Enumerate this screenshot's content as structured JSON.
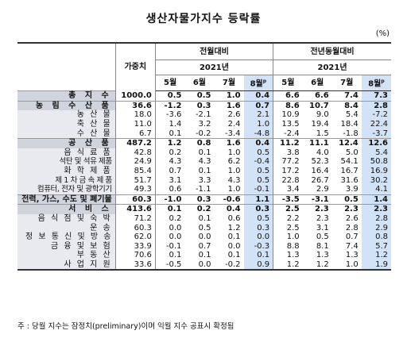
{
  "title": "생산자물가지수 등락률",
  "unit": "(%)",
  "headers": {
    "weight": "가중치",
    "mom": "전월대비",
    "yoy": "전년동월대비",
    "year": "2021년",
    "months": [
      "5월",
      "6월",
      "7월",
      "8월"
    ],
    "prelim_mark": "p"
  },
  "rows": [
    {
      "name": "총 지 수",
      "type": "major",
      "weight": "1000.0",
      "mom": [
        "0.5",
        "0.5",
        "1.0",
        "0.4"
      ],
      "yoy": [
        "6.6",
        "6.6",
        "7.4",
        "7.3"
      ]
    },
    {
      "name": "농 림 수 산 품",
      "type": "major",
      "weight": "36.6",
      "mom": [
        "-1.2",
        "0.3",
        "1.6",
        "0.7"
      ],
      "yoy": [
        "8.6",
        "10.7",
        "8.4",
        "2.8"
      ]
    },
    {
      "name": "농 산 물",
      "type": "sub",
      "weight": "18.0",
      "mom": [
        "-3.6",
        "-2.1",
        "2.6",
        "2.1"
      ],
      "yoy": [
        "10.9",
        "9.0",
        "5.4",
        "-7.2"
      ]
    },
    {
      "name": "축 산 물",
      "type": "sub",
      "weight": "11.0",
      "mom": [
        "1.4",
        "3.2",
        "2.4",
        "1.0"
      ],
      "yoy": [
        "13.5",
        "19.4",
        "18.4",
        "22.4"
      ]
    },
    {
      "name": "수 산 물",
      "type": "sub",
      "weight": "6.7",
      "mom": [
        "0.1",
        "-0.2",
        "-3.4",
        "-4.8"
      ],
      "yoy": [
        "-2.4",
        "1.5",
        "-1.8",
        "-3.7"
      ]
    },
    {
      "name": "공 산 품",
      "type": "major",
      "weight": "487.2",
      "mom": [
        "1.2",
        "0.8",
        "1.6",
        "0.4"
      ],
      "yoy": [
        "11.2",
        "11.1",
        "12.4",
        "12.6"
      ]
    },
    {
      "name": "음 식 료 품",
      "type": "sub",
      "weight": "42.8",
      "mom": [
        "0.2",
        "0.1",
        "1.0",
        "0.5"
      ],
      "yoy": [
        "3.8",
        "4.0",
        "5.0",
        "5.4"
      ]
    },
    {
      "name": "석탄 및 석유 제품",
      "type": "sub compact",
      "weight": "24.9",
      "mom": [
        "4.3",
        "4.3",
        "6.2",
        "-0.4"
      ],
      "yoy": [
        "77.2",
        "52.3",
        "54.1",
        "50.8"
      ]
    },
    {
      "name": "화 학 제 품",
      "type": "sub",
      "weight": "85.4",
      "mom": [
        "0.7",
        "0.1",
        "1.0",
        "0.5"
      ],
      "yoy": [
        "17.2",
        "16.4",
        "16.7",
        "16.9"
      ]
    },
    {
      "name": "제 1 차 금 속 제 품",
      "type": "sub compact",
      "weight": "51.7",
      "mom": [
        "3.1",
        "3.3",
        "4.3",
        "0.5"
      ],
      "yoy": [
        "22.8",
        "26.7",
        "31.6",
        "30.2"
      ]
    },
    {
      "name": "컴퓨터, 전자 및 광학기기",
      "type": "sub compact",
      "weight": "49.3",
      "mom": [
        "0.6",
        "-1.1",
        "1.0",
        "-0.1"
      ],
      "yoy": [
        "3.4",
        "2.9",
        "3.9",
        "4.1"
      ]
    },
    {
      "name": "전력, 가스, 수도 및 폐기물",
      "type": "major tight",
      "weight": "60.3",
      "mom": [
        "-1.0",
        "0.3",
        "-0.6",
        "1.1"
      ],
      "yoy": [
        "-3.5",
        "-3.1",
        "0.5",
        "1.4"
      ]
    },
    {
      "name": "서 비 스",
      "type": "major",
      "weight": "413.6",
      "mom": [
        "0.1",
        "0.2",
        "0.4",
        "0.3"
      ],
      "yoy": [
        "2.5",
        "2.3",
        "2.3",
        "2.3"
      ]
    },
    {
      "name": "음 식 점 및 숙 박",
      "type": "sub",
      "weight": "71.2",
      "mom": [
        "0.2",
        "0.1",
        "0.6",
        "0.5"
      ],
      "yoy": [
        "2.2",
        "2.3",
        "2.6",
        "2.8"
      ]
    },
    {
      "name": "운 송",
      "type": "sub",
      "weight": "60.3",
      "mom": [
        "0.0",
        "0.5",
        "1.2",
        "0.3"
      ],
      "yoy": [
        "2.5",
        "3.1",
        "2.8",
        "2.9"
      ]
    },
    {
      "name": "정 보 통 신 및 방 송",
      "type": "sub",
      "weight": "62.0",
      "mom": [
        "0.0",
        "0.0",
        "0.1",
        "0.0"
      ],
      "yoy": [
        "1.0",
        "0.5",
        "0.7",
        "0.8"
      ]
    },
    {
      "name": "금 융 및 보 험",
      "type": "sub",
      "weight": "33.9",
      "mom": [
        "-0.1",
        "0.7",
        "0.0",
        "-0.3"
      ],
      "yoy": [
        "8.8",
        "8.1",
        "7.4",
        "5.7"
      ]
    },
    {
      "name": "부 동 산",
      "type": "sub",
      "weight": "70.6",
      "mom": [
        "0.1",
        "0.1",
        "0.1",
        "0.1"
      ],
      "yoy": [
        "1.3",
        "1.3",
        "1.3",
        "1.2"
      ]
    },
    {
      "name": "사 업 지 원",
      "type": "sub",
      "weight": "33.6",
      "mom": [
        "-0.5",
        "0.0",
        "-0.2",
        "0.9"
      ],
      "yoy": [
        "1.2",
        "1.2",
        "1.0",
        "1.9"
      ]
    }
  ],
  "note": "주 : 당월 지수는 잠정치(preliminary)이며 익월 지수 공표시 확정됨",
  "colors": {
    "highlight": "#d3e3f7",
    "major_row": "#d0d4dc",
    "sub_row": "#e8eaef"
  }
}
